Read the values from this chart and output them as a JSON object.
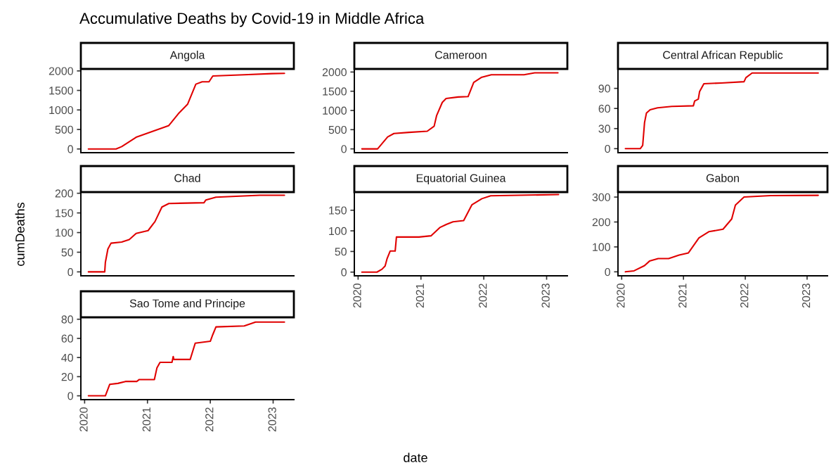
{
  "chart_data": [
    {
      "type": "line",
      "title": "Angola",
      "annotations": [
        "Accumulative Deaths by Covid-19 in Middle Africa"
      ],
      "xlim": [
        2019.94,
        2023.33
      ],
      "xticks": [
        2020,
        2021,
        2022,
        2023
      ],
      "ylim": [
        -95,
        2050
      ],
      "yticks": [
        0,
        500,
        1000,
        1500,
        2000
      ],
      "tick_labels": "y",
      "series": [
        {
          "color": "#e00000",
          "x": [
            2020.06,
            2020.5,
            2020.59,
            2020.82,
            2021.08,
            2021.34,
            2021.49,
            2021.64,
            2021.77,
            2021.87,
            2021.98,
            2022.04,
            2022.54,
            2022.98,
            2023.18
          ],
          "values": [
            0,
            0,
            60,
            300,
            450,
            600,
            900,
            1150,
            1660,
            1720,
            1720,
            1870,
            1900,
            1930,
            1937
          ]
        }
      ]
    },
    {
      "type": "line",
      "title": "Cameroon",
      "xlim": [
        2019.94,
        2023.33
      ],
      "xticks": [
        2020,
        2021,
        2022,
        2023
      ],
      "ylim": [
        -99,
        2080
      ],
      "yticks": [
        0,
        500,
        1000,
        1500,
        2000
      ],
      "tick_labels": "y",
      "series": [
        {
          "color": "#e00000",
          "x": [
            2020.06,
            2020.31,
            2020.47,
            2020.57,
            2020.81,
            2021.1,
            2021.21,
            2021.25,
            2021.34,
            2021.4,
            2021.59,
            2021.75,
            2021.84,
            2021.96,
            2022.12,
            2022.64,
            2022.81,
            2023.18
          ],
          "values": [
            0,
            0,
            310,
            400,
            430,
            460,
            590,
            870,
            1210,
            1310,
            1350,
            1360,
            1730,
            1860,
            1930,
            1930,
            1980,
            1980
          ]
        }
      ]
    },
    {
      "type": "line",
      "title": "Central African Republic",
      "xlim": [
        2019.94,
        2023.33
      ],
      "xticks": [
        2020,
        2021,
        2022,
        2023
      ],
      "ylim": [
        -6,
        119
      ],
      "yticks": [
        0,
        30,
        60,
        90
      ],
      "tick_labels": "y",
      "series": [
        {
          "color": "#e00000",
          "x": [
            2020.06,
            2020.3,
            2020.34,
            2020.37,
            2020.4,
            2020.46,
            2020.58,
            2020.81,
            2021.16,
            2021.18,
            2021.24,
            2021.26,
            2021.33,
            2021.61,
            2021.98,
            2022.01,
            2022.11,
            2023.18
          ],
          "values": [
            0,
            0,
            5,
            39,
            53,
            58,
            61,
            63,
            64,
            71,
            74,
            85,
            97,
            98,
            100,
            106,
            113,
            113
          ]
        }
      ]
    },
    {
      "type": "line",
      "title": "Chad",
      "ylabel": "cumDeaths",
      "xlim": [
        2019.94,
        2023.33
      ],
      "xticks": [
        2020,
        2021,
        2022,
        2023
      ],
      "ylim": [
        -10,
        203
      ],
      "yticks": [
        0,
        50,
        100,
        150,
        200
      ],
      "tick_labels": "y",
      "series": [
        {
          "color": "#e00000",
          "x": [
            2020.06,
            2020.32,
            2020.33,
            2020.37,
            2020.42,
            2020.59,
            2020.71,
            2020.82,
            2021.01,
            2021.12,
            2021.23,
            2021.34,
            2021.9,
            2021.93,
            2022.09,
            2022.79,
            2023.18
          ],
          "values": [
            0,
            0,
            24,
            58,
            73,
            76,
            82,
            98,
            105,
            128,
            165,
            174,
            176,
            183,
            190,
            195,
            195
          ]
        }
      ]
    },
    {
      "type": "line",
      "title": "Equatorial Guinea",
      "xlabel": "date",
      "xlim": [
        2019.94,
        2023.33
      ],
      "xticks": [
        2020,
        2021,
        2022,
        2023
      ],
      "ylim": [
        -9,
        194
      ],
      "yticks": [
        0,
        50,
        100,
        150
      ],
      "series": [
        {
          "color": "#e00000",
          "x": [
            2020.06,
            2020.3,
            2020.38,
            2020.43,
            2020.46,
            2020.51,
            2020.59,
            2020.61,
            2020.97,
            2021.16,
            2021.3,
            2021.41,
            2021.51,
            2021.68,
            2021.81,
            2021.97,
            2022.11,
            2023.19
          ],
          "values": [
            0,
            0,
            7,
            15,
            32,
            51,
            51,
            85,
            85,
            88,
            108,
            116,
            122,
            125,
            163,
            178,
            185,
            188
          ]
        }
      ]
    },
    {
      "type": "line",
      "title": "Gabon",
      "xlim": [
        2019.94,
        2023.33
      ],
      "xticks": [
        2020,
        2021,
        2022,
        2023
      ],
      "ylim": [
        -16,
        320
      ],
      "yticks": [
        0,
        100,
        200,
        300
      ],
      "series": [
        {
          "color": "#e00000",
          "x": [
            2020.06,
            2020.2,
            2020.37,
            2020.45,
            2020.59,
            2020.76,
            2020.93,
            2021.08,
            2021.25,
            2021.41,
            2021.64,
            2021.78,
            2021.84,
            2021.98,
            2022.41,
            2023.18
          ],
          "values": [
            0,
            4,
            25,
            43,
            53,
            53,
            67,
            76,
            136,
            161,
            171,
            212,
            268,
            300,
            306,
            307
          ]
        }
      ]
    },
    {
      "type": "line",
      "title": "Sao Tome and Principe",
      "xlim": [
        2019.94,
        2023.33
      ],
      "xticks": [
        2020,
        2021,
        2022,
        2023
      ],
      "ylim": [
        -4,
        82
      ],
      "yticks": [
        0,
        20,
        40,
        60,
        80
      ],
      "series": [
        {
          "color": "#e00000",
          "x": [
            2020.06,
            2020.33,
            2020.4,
            2020.53,
            2020.65,
            2020.83,
            2020.87,
            2021.11,
            2021.15,
            2021.2,
            2021.39,
            2021.41,
            2021.42,
            2021.68,
            2021.76,
            2022.0,
            2022.04,
            2022.09,
            2022.54,
            2022.72,
            2023.18
          ],
          "values": [
            0,
            0,
            12,
            13,
            15,
            15,
            17,
            17,
            29,
            35,
            35,
            41,
            38,
            38,
            55,
            57,
            64,
            72,
            73,
            77,
            77
          ]
        }
      ]
    }
  ]
}
